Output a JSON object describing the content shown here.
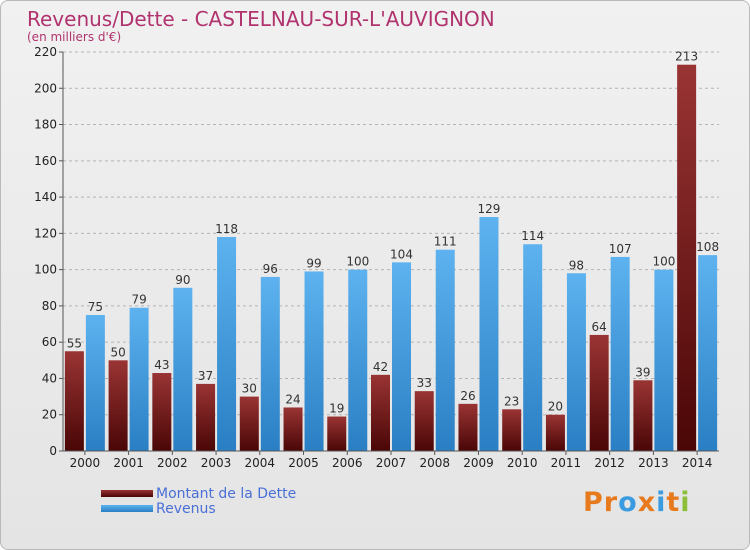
{
  "header": {
    "title": "Revenus/Dette - CASTELNAU-SUR-L'AUVIGNON",
    "subtitle": "(en milliers d'€)"
  },
  "chart_data": {
    "type": "bar",
    "categories": [
      "2000",
      "2001",
      "2002",
      "2003",
      "2004",
      "2005",
      "2006",
      "2007",
      "2008",
      "2009",
      "2010",
      "2011",
      "2012",
      "2013",
      "2014"
    ],
    "series": [
      {
        "name": "Montant de la Dette",
        "color": "#7a1c1c",
        "values": [
          55,
          50,
          43,
          37,
          30,
          24,
          19,
          42,
          33,
          26,
          23,
          20,
          64,
          39,
          213
        ]
      },
      {
        "name": "Revenus",
        "color": "#3a9be0",
        "values": [
          75,
          79,
          90,
          118,
          96,
          99,
          100,
          104,
          111,
          129,
          114,
          98,
          107,
          100,
          108
        ]
      }
    ],
    "ylim": [
      0,
      220
    ],
    "yticks": [
      0,
      20,
      40,
      60,
      80,
      100,
      120,
      140,
      160,
      180,
      200,
      220
    ],
    "grid": true,
    "legend_position": "bottom-left"
  },
  "logo": {
    "text": "Proxiti"
  }
}
